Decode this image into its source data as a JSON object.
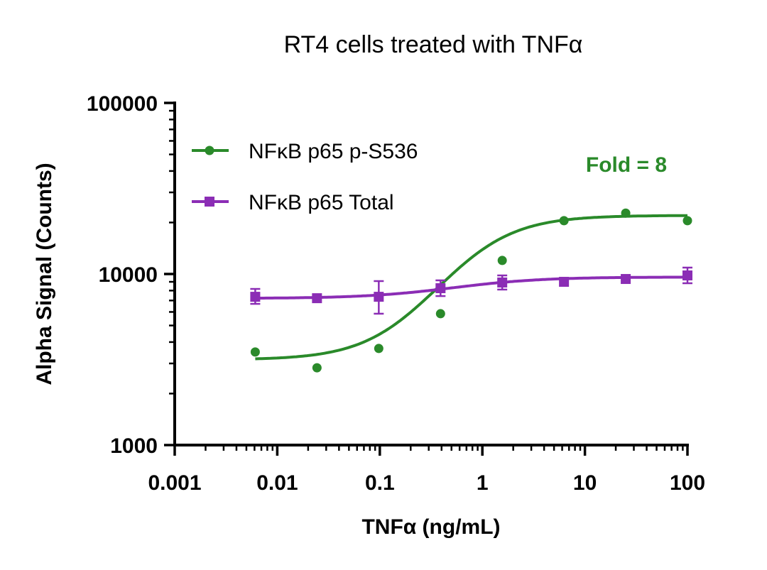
{
  "chart_data": {
    "type": "scatter",
    "title": "RT4 cells treated with TNFα",
    "xlabel": "TNFα (ng/mL)",
    "ylabel": "Alpha Signal (Counts)",
    "x_scale": "log",
    "y_scale": "log",
    "xlim": [
      0.001,
      100
    ],
    "ylim": [
      1000,
      100000
    ],
    "x_ticks": [
      "0.001",
      "0.01",
      "0.1",
      "1",
      "10",
      "100"
    ],
    "y_ticks": [
      "1000",
      "10000",
      "100000"
    ],
    "grid": false,
    "legend_position": "top-left",
    "annotation": "Fold = 8",
    "x": [
      0.0061,
      0.0244,
      0.0977,
      0.391,
      1.5625,
      6.25,
      25,
      100
    ],
    "series": [
      {
        "name": "NFκB p65 p-S536",
        "color": "#2a8a2a",
        "marker": "circle",
        "values": [
          3500,
          2830,
          3670,
          5860,
          12000,
          20500,
          22700,
          20500
        ],
        "fit": {
          "bottom": 3150,
          "top": 22000,
          "ec50": 0.8,
          "hill": 1.25
        }
      },
      {
        "name": "NFκB p65 Total",
        "color": "#8b2db5",
        "marker": "square",
        "values": [
          7360,
          7220,
          7360,
          8260,
          8920,
          9000,
          9350,
          9810
        ],
        "error_low": [
          6690,
          null,
          5860,
          7430,
          8110,
          null,
          null,
          8830
        ],
        "error_high": [
          8180,
          null,
          9090,
          9180,
          9810,
          null,
          null,
          10900
        ],
        "fit": {
          "bottom": 7200,
          "top": 9600,
          "ec50": 0.6,
          "hill": 1.0
        }
      }
    ]
  }
}
